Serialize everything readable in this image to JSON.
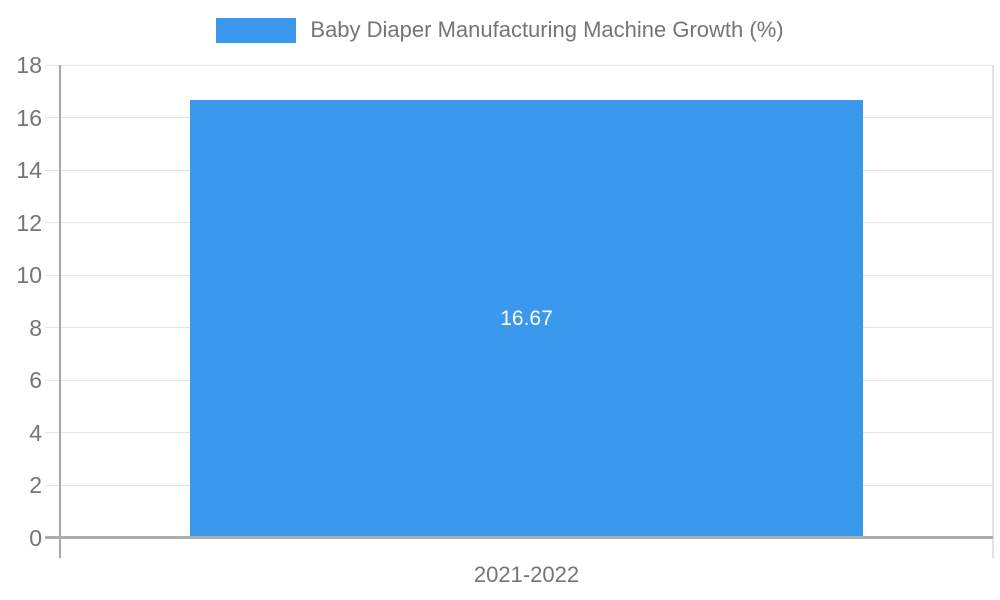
{
  "chart_data": {
    "type": "bar",
    "categories": [
      "2021-2022"
    ],
    "series": [
      {
        "name": "Baby Diaper Manufacturing Machine Growth (%)",
        "values": [
          16.67
        ]
      }
    ],
    "value_labels": [
      "16.67"
    ],
    "title": "",
    "xlabel": "",
    "ylabel": "",
    "ylim": [
      0,
      18
    ],
    "yticks": [
      0,
      2,
      4,
      6,
      8,
      10,
      12,
      14,
      16,
      18
    ],
    "grid": true,
    "legend_position": "top-center",
    "colors": {
      "bar": "#3A99EC",
      "grid": "#E3E3E3",
      "axis": "#A8A8A8",
      "baseline": "#ADADAD",
      "text": "#757575",
      "value_label": "#FFFFFF",
      "background": "#FFFFFF"
    }
  }
}
